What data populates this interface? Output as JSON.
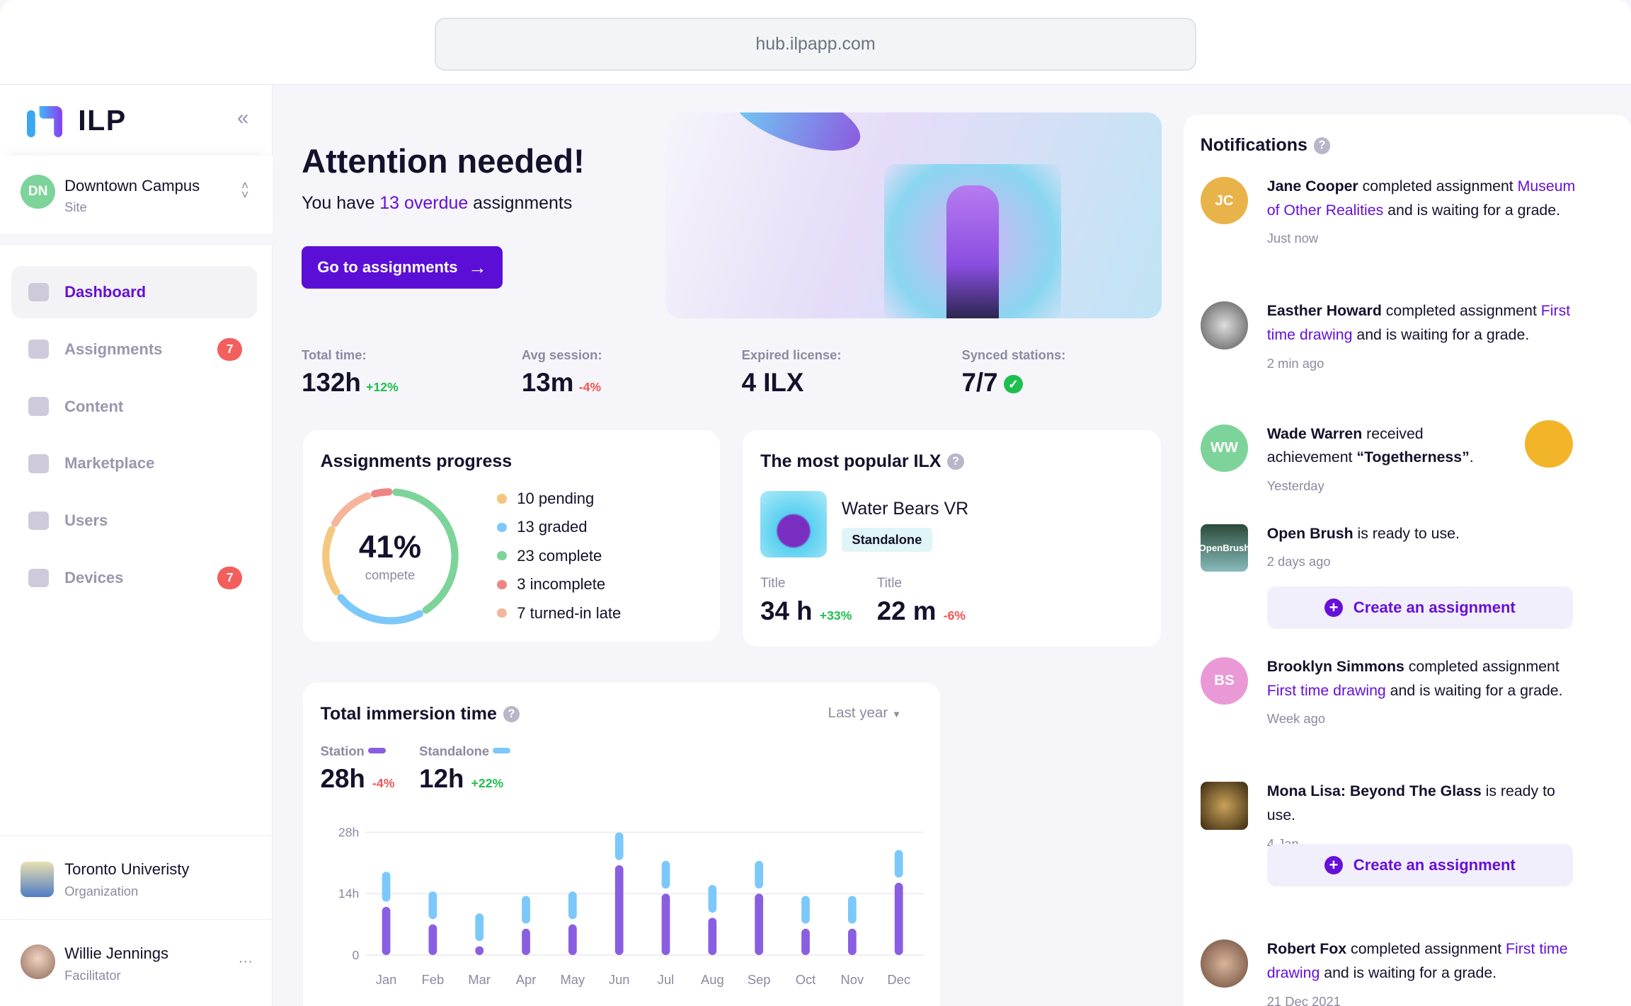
{
  "browser": {
    "url": "hub.ilpapp.com"
  },
  "sidebar": {
    "logo": "ILP",
    "site": {
      "initials": "DN",
      "name": "Downtown Campus",
      "type": "Site"
    },
    "items": [
      {
        "label": "Dashboard",
        "icon": "home-icon",
        "active": true
      },
      {
        "label": "Assignments",
        "icon": "flag-icon",
        "badge": "7"
      },
      {
        "label": "Content",
        "icon": "folder-icon"
      },
      {
        "label": "Marketplace",
        "icon": "bag-icon"
      },
      {
        "label": "Users",
        "icon": "users-icon"
      },
      {
        "label": "Devices",
        "icon": "home-icon",
        "badge": "7"
      }
    ],
    "org": {
      "name": "Toronto Univeristy",
      "type": "Organization"
    },
    "user": {
      "name": "Willie Jennings",
      "role": "Facilitator",
      "more": "···"
    }
  },
  "hero": {
    "title": "Attention needed!",
    "text_pre": "You have ",
    "text_link": "13 overdue",
    "text_post": " assignments",
    "button": "Go to assignments"
  },
  "stats": [
    {
      "label": "Total time:",
      "value": "132h",
      "delta": "+12%",
      "trend": "up"
    },
    {
      "label": "Avg session:",
      "value": "13m",
      "delta": "-4%",
      "trend": "down"
    },
    {
      "label": "Expired license:",
      "value": "4 ILX",
      "delta": ""
    },
    {
      "label": "Synced stations:",
      "value": "7/7",
      "delta": ""
    }
  ],
  "progress": {
    "title": "Assignments progress",
    "percent": "41%",
    "caption": "compete",
    "legend": [
      {
        "label": "10 pending",
        "count": 10,
        "color": "#f5c77e"
      },
      {
        "label": "13 graded",
        "count": 13,
        "color": "#7cc8fb"
      },
      {
        "label": "23 complete",
        "count": 23,
        "color": "#7dd49a"
      },
      {
        "label": "3 incomplete",
        "count": 3,
        "color": "#ee8585"
      },
      {
        "label": "7 turned-in late",
        "count": 7,
        "color": "#f5b59c"
      }
    ]
  },
  "popular": {
    "title": "The most popular ILX",
    "name": "Water Bears VR",
    "tag": "Standalone",
    "metrics": [
      {
        "label": "Title",
        "value": "34 h",
        "delta": "+33%"
      },
      {
        "label": "Title",
        "value": "22 m",
        "delta": "-6%"
      }
    ]
  },
  "immersion": {
    "title": "Total immersion time",
    "range": "Last year",
    "series_summary": [
      {
        "name": "Station",
        "value": "28h",
        "delta": "-4%"
      },
      {
        "name": "Standalone",
        "value": "12h",
        "delta": "+22%"
      }
    ]
  },
  "chart_data": {
    "type": "bar",
    "title": "Total immersion time",
    "categories": [
      "Jan",
      "Feb",
      "Mar",
      "Apr",
      "May",
      "Jun",
      "Jul",
      "Aug",
      "Sep",
      "Oct",
      "Nov",
      "Dec"
    ],
    "series": [
      {
        "name": "Station",
        "color": "#8a5ee0",
        "values": [
          11,
          7,
          2,
          6,
          7,
          20.5,
          14,
          8.5,
          14,
          6,
          6,
          16.5
        ]
      },
      {
        "name": "Standalone",
        "color": "#7cc8fb",
        "values": [
          8,
          7.5,
          7.5,
          7.5,
          7.5,
          7.5,
          7.5,
          7.5,
          7.5,
          7.5,
          7.5,
          7.5
        ]
      }
    ],
    "y_ticks": [
      "0",
      "14h",
      "28h"
    ],
    "ylim": [
      0,
      28
    ],
    "stacked": true,
    "grid": true
  },
  "notifications": {
    "title": "Notifications",
    "items": [
      {
        "initials": "JC",
        "name": "Jane Cooper",
        "pre": " completed assignment ",
        "link": "Museum of Other Realities",
        "post": " and is waiting for a grade.",
        "time": "Just now"
      },
      {
        "name": "Easther Howard",
        "pre": " completed assignment ",
        "link": "First time drawing",
        "post": " and is waiting for a grade.",
        "time": "2 min ago"
      },
      {
        "initials": "WW",
        "name": "Wade Warren",
        "pre": " received achievement ",
        "bold2": "“Togetherness”",
        "post": ".",
        "time": "Yesterday"
      },
      {
        "name": "Open Brush",
        "pre": " is ready to use.",
        "time": "2 days ago",
        "thumb": "OpenBrush",
        "cta": "Create an assignment"
      },
      {
        "initials": "BS",
        "name": "Brooklyn Simmons",
        "pre": " completed assignment ",
        "link": "First time drawing",
        "post": " and is waiting for a grade.",
        "time": "Week ago"
      },
      {
        "name": "Mona Lisa: Beyond The Glass",
        "pre": " is ready to use.",
        "time": "4 Jan",
        "cta": "Create an assignment"
      },
      {
        "name": "Robert Fox",
        "pre": " completed assignment ",
        "link": "First time drawing",
        "post": " and is waiting for a grade.",
        "time": "21 Dec 2021"
      }
    ]
  }
}
